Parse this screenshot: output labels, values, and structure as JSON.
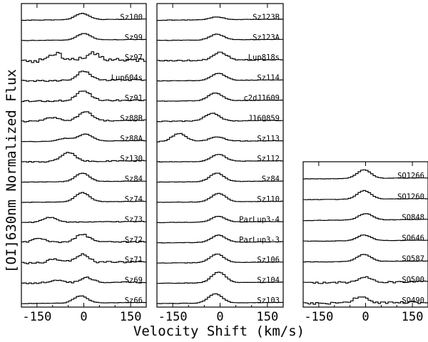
{
  "chart_data": {
    "type": "line",
    "title": "",
    "xlabel": "Velocity Shift (km/s)",
    "ylabel": "[OI]630nm Normalized Flux",
    "xlim": [
      -200,
      200
    ],
    "x_ticks": [
      -150,
      0,
      150
    ],
    "x_tick_labels": [
      "-150",
      "0",
      "150"
    ],
    "panels": [
      {
        "name": "left",
        "series": [
          {
            "name": "Sz100",
            "peaks": [
              {
                "v": -5,
                "h": 0.9
              }
            ]
          },
          {
            "name": "Sz99",
            "peaks": [
              {
                "v": 0,
                "h": 0.9
              }
            ]
          },
          {
            "name": "Sz97",
            "peaks": [
              {
                "v": -90,
                "h": 0.9
              },
              {
                "v": 30,
                "h": 1.0
              }
            ],
            "noise": 0.55
          },
          {
            "name": "Lup604s",
            "peaks": [
              {
                "v": 0,
                "h": 1.3
              }
            ],
            "noise": 0.2
          },
          {
            "name": "Sz91",
            "peaks": [
              {
                "v": 0,
                "h": 1.4
              }
            ],
            "noise": 0.2
          },
          {
            "name": "Sz88B",
            "peaks": [
              {
                "v": -100,
                "h": 0.5
              },
              {
                "v": 5,
                "h": 1.3
              }
            ],
            "noise": 0.15
          },
          {
            "name": "Sz88A",
            "peaks": [
              {
                "v": -60,
                "h": 0.4
              },
              {
                "v": 5,
                "h": 1.0
              }
            ]
          },
          {
            "name": "Sz130",
            "peaks": [
              {
                "v": -50,
                "h": 1.3
              }
            ],
            "noise": 0.15
          },
          {
            "name": "Sz84",
            "peaks": [
              {
                "v": -5,
                "h": 1.2
              }
            ]
          },
          {
            "name": "Sz74",
            "peaks": [
              {
                "v": -5,
                "h": 1.3
              }
            ]
          },
          {
            "name": "Sz73",
            "peaks": [
              {
                "v": -110,
                "h": 0.7
              }
            ],
            "noise": 0.1
          },
          {
            "name": "Sz72",
            "peaks": [
              {
                "v": -145,
                "h": 0.6
              },
              {
                "v": -5,
                "h": 1.1
              }
            ],
            "noise": 0.2
          },
          {
            "name": "Sz71",
            "peaks": [
              {
                "v": -90,
                "h": 0.5
              },
              {
                "v": -5,
                "h": 1.1
              }
            ],
            "noise": 0.3
          },
          {
            "name": "Sz69",
            "peaks": [
              {
                "v": -90,
                "h": 0.4
              },
              {
                "v": 10,
                "h": 0.7
              }
            ],
            "noise": 0.2
          },
          {
            "name": "Sz66",
            "peaks": [
              {
                "v": -10,
                "h": 1.0
              }
            ]
          }
        ]
      },
      {
        "name": "middle",
        "series": [
          {
            "name": "Sz123B",
            "peaks": [
              {
                "v": -10,
                "h": 0.4
              }
            ]
          },
          {
            "name": "Sz123A",
            "peaks": [
              {
                "v": -10,
                "h": 0.8
              }
            ]
          },
          {
            "name": "Lup818s",
            "peaks": [
              {
                "v": 0,
                "h": 1.1
              }
            ],
            "noise": 0.15
          },
          {
            "name": "Sz114",
            "peaks": [
              {
                "v": -5,
                "h": 1.0
              }
            ]
          },
          {
            "name": "c2dJ1609",
            "peaks": [
              {
                "v": -15,
                "h": 1.1
              }
            ]
          },
          {
            "name": "J160859",
            "peaks": [
              {
                "v": -25,
                "h": 1.1
              }
            ],
            "noise": 0.1
          },
          {
            "name": "Sz113",
            "peaks": [
              {
                "v": -130,
                "h": 1.1
              },
              {
                "v": -10,
                "h": 0.6
              }
            ],
            "noise": 0.1
          },
          {
            "name": "Sz112",
            "peaks": [
              {
                "v": -5,
                "h": 1.0
              }
            ]
          },
          {
            "name": "Sz84",
            "peaks": [
              {
                "v": -10,
                "h": 1.2
              }
            ]
          },
          {
            "name": "Sz110",
            "peaks": [
              {
                "v": -5,
                "h": 1.2
              }
            ]
          },
          {
            "name": "ParLup3-4",
            "peaks": [
              {
                "v": -5,
                "h": 0.8
              }
            ]
          },
          {
            "name": "ParLup3-3",
            "peaks": [
              {
                "v": -5,
                "h": 1.0
              }
            ]
          },
          {
            "name": "Sz106",
            "peaks": [
              {
                "v": -10,
                "h": 1.2
              }
            ]
          },
          {
            "name": "Sz104",
            "peaks": [
              {
                "v": -5,
                "h": 1.5
              }
            ]
          },
          {
            "name": "Sz103",
            "peaks": [
              {
                "v": -15,
                "h": 1.3
              }
            ]
          }
        ]
      },
      {
        "name": "right",
        "series": [
          {
            "name": "SO1266",
            "peaks": [
              {
                "v": -5,
                "h": 1.2
              }
            ]
          },
          {
            "name": "SO1260",
            "peaks": [
              {
                "v": -5,
                "h": 1.2
              }
            ]
          },
          {
            "name": "SO848",
            "peaks": [
              {
                "v": 0,
                "h": 0.9
              }
            ]
          },
          {
            "name": "SO646",
            "peaks": [
              {
                "v": -5,
                "h": 0.8
              }
            ]
          },
          {
            "name": "SO587",
            "peaks": [
              {
                "v": -5,
                "h": 1.0
              }
            ]
          },
          {
            "name": "SO500",
            "peaks": [
              {
                "v": 0,
                "h": 0.7
              }
            ],
            "noise": 0.25
          },
          {
            "name": "SO490",
            "peaks": [
              {
                "v": -15,
                "h": 0.9
              }
            ],
            "noise": 0.3
          }
        ]
      }
    ]
  }
}
